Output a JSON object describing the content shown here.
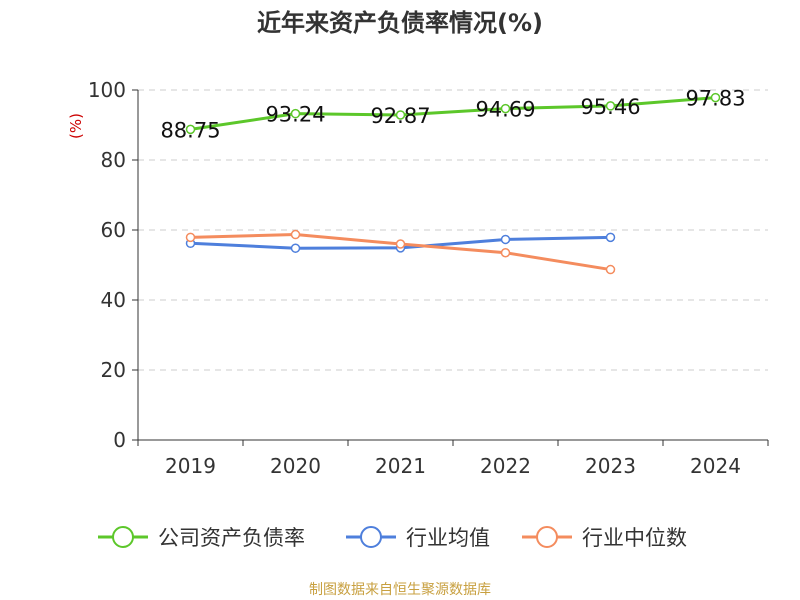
{
  "chart_data": {
    "type": "line",
    "title": "近年来资产负债率情况(%)",
    "ylabel": "(%)",
    "xlabel": "",
    "categories": [
      "2019",
      "2020",
      "2021",
      "2022",
      "2023",
      "2024"
    ],
    "ylim": [
      0,
      100
    ],
    "yticks": [
      "0",
      "20",
      "40",
      "60",
      "80",
      "100"
    ],
    "grid": true,
    "legend_position": "bottom",
    "series": [
      {
        "name": "公司资产负债率",
        "values": [
          88.75,
          93.24,
          92.87,
          94.69,
          95.46,
          97.83
        ],
        "labels": [
          "88.75",
          "93.24",
          "92.87",
          "94.69",
          "95.46",
          "97.83"
        ],
        "color": "#5cc72a"
      },
      {
        "name": "行业均值",
        "values": [
          56.2,
          54.8,
          54.9,
          57.3,
          57.9,
          null
        ],
        "color": "#4e7fdc"
      },
      {
        "name": "行业中位数",
        "values": [
          57.9,
          58.7,
          56.0,
          53.5,
          48.7,
          null
        ],
        "color": "#f48c5e"
      }
    ],
    "source": "制图数据来自恒生聚源数据库",
    "colors": {
      "axis": "#333333",
      "grid": "#cccccc",
      "unit": "#cc0000",
      "source": "#c8a040"
    }
  }
}
